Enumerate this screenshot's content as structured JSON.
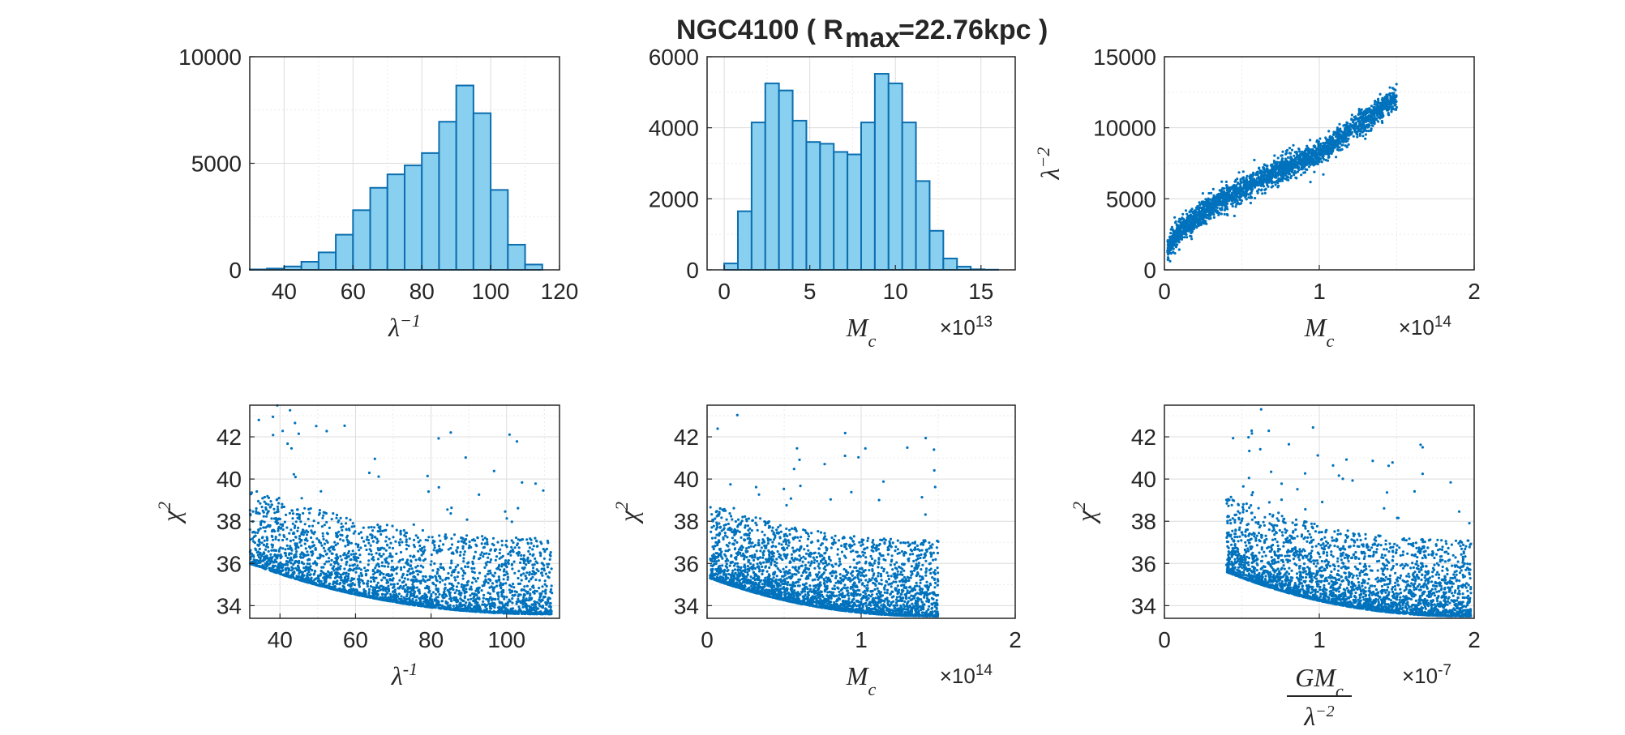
{
  "figure": {
    "title": "NGC4100 ( R",
    "title_sub": "max",
    "title_rest": "=22.76kpc )"
  },
  "colors": {
    "bar_fill": "#89CFF0",
    "bar_edge": "#0B6EAF",
    "scatter": "#0072BD",
    "axis": "#262626",
    "grid": "#DCDCDC"
  },
  "chart_data": [
    {
      "type": "bar",
      "panel": "top-left",
      "xlabel": "λ",
      "xlabel_sup": "−1",
      "ylabel": "",
      "xlim": [
        30,
        120
      ],
      "ylim": [
        0,
        10000
      ],
      "xticks": [
        "40",
        "60",
        "80",
        "100",
        "120"
      ],
      "xtick_values": [
        40,
        60,
        80,
        100,
        120
      ],
      "yticks": [
        "0",
        "5000",
        "10000"
      ],
      "ytick_values": [
        0,
        5000,
        10000
      ],
      "bin_edges": [
        30,
        35,
        40,
        45,
        50,
        55,
        60,
        65,
        70,
        75,
        80,
        85,
        90,
        95,
        100,
        105,
        110,
        115
      ],
      "values": [
        20,
        60,
        160,
        380,
        820,
        1650,
        2800,
        3850,
        4480,
        4900,
        5480,
        6950,
        8650,
        7350,
        3750,
        1180,
        250
      ],
      "grid": true
    },
    {
      "type": "bar",
      "panel": "top-middle",
      "xlabel": "M",
      "xlabel_sub": "c",
      "exponent": "×10",
      "exponent_sup": "13",
      "xlim": [
        -1,
        17
      ],
      "ylim": [
        0,
        6000
      ],
      "xticks": [
        "0",
        "5",
        "10",
        "15"
      ],
      "xtick_values": [
        0,
        5,
        10,
        15
      ],
      "yticks": [
        "0",
        "2000",
        "4000",
        "6000"
      ],
      "ytick_values": [
        0,
        2000,
        4000,
        6000
      ],
      "bin_edges": [
        0,
        0.8,
        1.6,
        2.4,
        3.2,
        4.0,
        4.8,
        5.6,
        6.4,
        7.2,
        8.0,
        8.8,
        9.6,
        10.4,
        11.2,
        12.0,
        12.8,
        13.6,
        14.4,
        15.2,
        16.0
      ],
      "values": [
        180,
        1650,
        4150,
        5250,
        5050,
        4200,
        3600,
        3550,
        3320,
        3250,
        4150,
        5520,
        5250,
        4150,
        2500,
        1100,
        320,
        90,
        15,
        5
      ],
      "grid": true
    },
    {
      "type": "scatter",
      "panel": "top-right",
      "xlabel": "M",
      "xlabel_sub": "c",
      "ylabel": "λ",
      "ylabel_sup": "−2",
      "exponent": "×10",
      "exponent_sup": "14",
      "xlim": [
        0,
        2
      ],
      "ylim": [
        0,
        15000
      ],
      "xticks": [
        "0",
        "1",
        "2"
      ],
      "xtick_values": [
        0,
        1,
        2
      ],
      "yticks": [
        "0",
        "5000",
        "10000",
        "15000"
      ],
      "ytick_values": [
        0,
        5000,
        10000,
        15000
      ],
      "trend": {
        "x_range": [
          0.02,
          1.5
        ],
        "y_at_min": 1200,
        "y_at_1": 8200,
        "y_at_max": 12200
      },
      "grid": true
    },
    {
      "type": "scatter",
      "panel": "bottom-left",
      "xlabel": "λ",
      "xlabel_sup": "-1",
      "ylabel": "χ",
      "ylabel_sup": "2",
      "xlim": [
        32,
        114
      ],
      "ylim": [
        33.4,
        43.5
      ],
      "xticks": [
        "40",
        "60",
        "80",
        "100"
      ],
      "xtick_values": [
        40,
        60,
        80,
        100
      ],
      "yticks": [
        "34",
        "36",
        "38",
        "40",
        "42"
      ],
      "ytick_values": [
        34,
        36,
        38,
        40,
        42
      ],
      "floor": {
        "x_range": [
          32,
          112
        ],
        "y_start": 36.0,
        "y_end": 33.6
      },
      "grid": true
    },
    {
      "type": "scatter",
      "panel": "bottom-middle",
      "xlabel": "M",
      "xlabel_sub": "c",
      "ylabel": "χ",
      "ylabel_sup": "2",
      "exponent": "×10",
      "exponent_sup": "14",
      "xlim": [
        0,
        2
      ],
      "ylim": [
        33.4,
        43.5
      ],
      "xticks": [
        "0",
        "1",
        "2"
      ],
      "xtick_values": [
        0,
        1,
        2
      ],
      "yticks": [
        "34",
        "36",
        "38",
        "40",
        "42"
      ],
      "ytick_values": [
        34,
        36,
        38,
        40,
        42
      ],
      "floor": {
        "x_range": [
          0.02,
          1.5
        ],
        "y_start": 35.3,
        "y_end": 33.5
      },
      "grid": true
    },
    {
      "type": "scatter",
      "panel": "bottom-right",
      "xlabel": "GM",
      "xlabel_sub": "c",
      "xlabel_denominator": "λ",
      "xlabel_denominator_sup": "−2",
      "ylabel": "χ",
      "ylabel_sup": "2",
      "exponent": "×10",
      "exponent_sup": "-7",
      "xlim": [
        0,
        2
      ],
      "ylim": [
        33.4,
        43.5
      ],
      "xticks": [
        "0",
        "1",
        "2"
      ],
      "xtick_values": [
        0,
        1,
        2
      ],
      "yticks": [
        "34",
        "36",
        "38",
        "40",
        "42"
      ],
      "ytick_values": [
        34,
        36,
        38,
        40,
        42
      ],
      "floor": {
        "x_range": [
          0.4,
          1.98
        ],
        "y_start": 35.6,
        "y_end": 33.5
      },
      "grid": true
    }
  ]
}
